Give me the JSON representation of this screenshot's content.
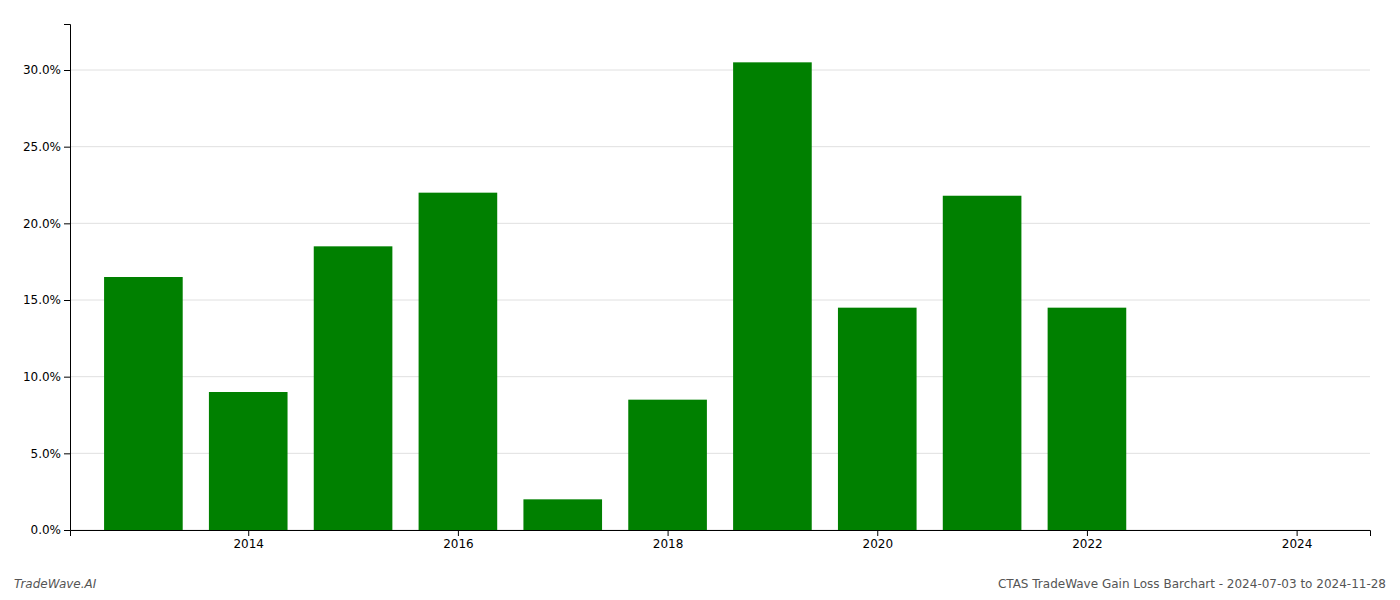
{
  "chart_data": {
    "type": "bar",
    "x": [
      2013,
      2014,
      2015,
      2016,
      2017,
      2018,
      2019,
      2020,
      2021,
      2022,
      2023
    ],
    "values": [
      0.165,
      0.09,
      0.185,
      0.22,
      0.02,
      0.085,
      0.305,
      0.145,
      0.218,
      0.145,
      0.0
    ],
    "color": "#008000",
    "xlim": [
      2012.3,
      2024.7
    ],
    "xticks": [
      2014,
      2016,
      2018,
      2020,
      2022,
      2024
    ],
    "ylim": [
      0,
      0.33
    ],
    "yticks": [
      {
        "value": 0.0,
        "label": "0.0%"
      },
      {
        "value": 0.05,
        "label": "5.0%"
      },
      {
        "value": 0.1,
        "label": "10.0%"
      },
      {
        "value": 0.15,
        "label": "15.0%"
      },
      {
        "value": 0.2,
        "label": "20.0%"
      },
      {
        "value": 0.25,
        "label": "25.0%"
      },
      {
        "value": 0.3,
        "label": "30.0%"
      }
    ],
    "grid": true,
    "annotations": [
      "TradeWave.AI",
      "CTAS TradeWave Gain Loss Barchart - 2024-07-03 to 2024-11-28"
    ]
  }
}
